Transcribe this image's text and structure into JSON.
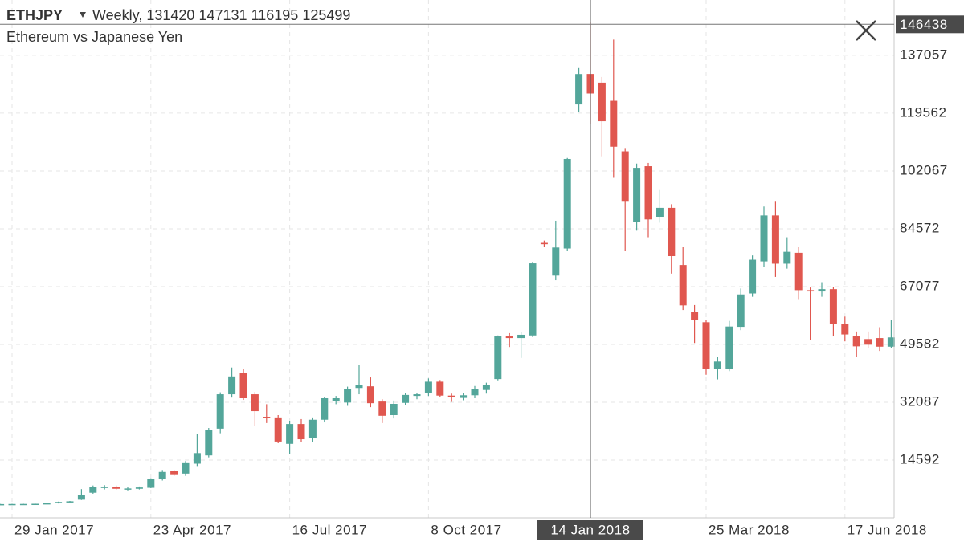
{
  "header": {
    "symbol": "ETHJPY",
    "interval": "Weekly,",
    "ohlc": [
      131420,
      147131,
      116195,
      125499
    ],
    "subtitle": "Ethereum vs Japanese Yen"
  },
  "chart_data": {
    "type": "candlestick",
    "x": [
      "2017-01-22",
      "2017-01-29",
      "2017-02-05",
      "2017-02-12",
      "2017-02-19",
      "2017-02-26",
      "2017-03-05",
      "2017-03-12",
      "2017-03-19",
      "2017-03-26",
      "2017-04-02",
      "2017-04-09",
      "2017-04-16",
      "2017-04-23",
      "2017-04-30",
      "2017-05-07",
      "2017-05-14",
      "2017-05-21",
      "2017-05-28",
      "2017-06-04",
      "2017-06-11",
      "2017-06-18",
      "2017-06-25",
      "2017-07-02",
      "2017-07-09",
      "2017-07-16",
      "2017-07-23",
      "2017-07-30",
      "2017-08-06",
      "2017-08-13",
      "2017-08-20",
      "2017-08-27",
      "2017-09-03",
      "2017-09-10",
      "2017-09-17",
      "2017-09-24",
      "2017-10-01",
      "2017-10-08",
      "2017-10-15",
      "2017-10-22",
      "2017-10-29",
      "2017-11-05",
      "2017-11-12",
      "2017-11-19",
      "2017-11-26",
      "2017-12-03",
      "2017-12-10",
      "2017-12-17",
      "2017-12-24",
      "2017-12-31",
      "2018-01-07",
      "2018-01-14",
      "2018-01-21",
      "2018-01-28",
      "2018-02-04",
      "2018-02-11",
      "2018-02-18",
      "2018-02-25",
      "2018-03-04",
      "2018-03-11",
      "2018-03-18",
      "2018-03-25",
      "2018-04-01",
      "2018-04-08",
      "2018-04-15",
      "2018-04-22",
      "2018-04-29",
      "2018-05-06",
      "2018-05-13",
      "2018-05-20",
      "2018-05-27",
      "2018-06-03",
      "2018-06-10",
      "2018-06-17",
      "2018-06-24",
      "2018-07-01",
      "2018-07-08",
      "2018-07-15"
    ],
    "open": [
      1200,
      1250,
      1280,
      1300,
      1350,
      1500,
      1900,
      2600,
      4700,
      6300,
      6500,
      5800,
      5900,
      6200,
      8800,
      11200,
      10500,
      13500,
      16000,
      24100,
      34500,
      41000,
      34500,
      27700,
      27500,
      19500,
      25500,
      21200,
      26800,
      32500,
      32000,
      36400,
      36900,
      32300,
      28200,
      31900,
      34000,
      34800,
      38300,
      34100,
      33400,
      34200,
      35800,
      39100,
      52000,
      51500,
      52300,
      80300,
      70400,
      78600,
      122200,
      131420,
      128800,
      123300,
      108000,
      86700,
      103500,
      88200,
      90900,
      73600,
      59300,
      56300,
      42200,
      42200,
      54900,
      65000,
      74700,
      88600,
      74000,
      77300,
      66000,
      65600,
      66300,
      55800,
      52000,
      51200,
      51500,
      48900
    ],
    "high": [
      1300,
      1330,
      1350,
      1400,
      1550,
      2000,
      2200,
      5800,
      6900,
      7000,
      6900,
      6400,
      6600,
      9100,
      11600,
      11600,
      14300,
      22600,
      24300,
      35100,
      42600,
      42200,
      35200,
      31500,
      28200,
      26500,
      27000,
      27500,
      33600,
      34000,
      36800,
      43400,
      39600,
      33000,
      32600,
      34800,
      35000,
      39300,
      38800,
      34700,
      35000,
      37000,
      38000,
      52300,
      53000,
      53300,
      74600,
      81000,
      87000,
      106000,
      133200,
      147131,
      130500,
      141800,
      109000,
      104300,
      104500,
      96300,
      92000,
      79000,
      61500,
      57000,
      45900,
      56700,
      66500,
      76500,
      91300,
      93000,
      82000,
      79000,
      66800,
      68400,
      67000,
      58000,
      53500,
      53500,
      54800,
      57000
    ],
    "low": [
      1150,
      1200,
      1250,
      1250,
      1300,
      1450,
      1800,
      2500,
      4400,
      5700,
      5600,
      5400,
      5700,
      6100,
      8400,
      9800,
      9800,
      12800,
      15400,
      22700,
      33500,
      32800,
      25000,
      25800,
      19700,
      16500,
      20000,
      20000,
      26000,
      31500,
      31000,
      34500,
      30600,
      25800,
      27200,
      31200,
      33000,
      34000,
      33600,
      32200,
      32700,
      33300,
      34700,
      38700,
      48800,
      45500,
      51800,
      79000,
      69000,
      77800,
      120000,
      116195,
      106500,
      100000,
      78000,
      84000,
      82000,
      86400,
      71000,
      60000,
      50000,
      40400,
      39000,
      41500,
      53900,
      64000,
      73000,
      70000,
      72500,
      63300,
      51000,
      64000,
      52000,
      50500,
      45900,
      48500,
      47600,
      48500
    ],
    "close": [
      1250,
      1280,
      1300,
      1350,
      1500,
      1900,
      2100,
      3900,
      6400,
      6500,
      5900,
      6000,
      6300,
      8900,
      11000,
      10300,
      13900,
      16700,
      23600,
      34500,
      39900,
      33300,
      29400,
      27300,
      20200,
      25500,
      20900,
      26800,
      33300,
      33300,
      36200,
      37300,
      31800,
      28000,
      31600,
      34300,
      34500,
      38300,
      34100,
      33600,
      34200,
      36000,
      37200,
      52000,
      51500,
      52500,
      74100,
      79900,
      78900,
      105700,
      131400,
      125499,
      117100,
      109400,
      93000,
      103000,
      87400,
      90900,
      76300,
      61400,
      56900,
      42200,
      44400,
      55000,
      64700,
      75200,
      88600,
      74000,
      77600,
      66000,
      65600,
      66300,
      55800,
      52600,
      49000,
      49500,
      48900,
      51700
    ],
    "up_color": "#53a69a",
    "down_color": "#e0574f",
    "ylim": [
      -2900,
      153800
    ],
    "yticks": [
      14592,
      32087,
      49582,
      67077,
      84572,
      102067,
      119562,
      137057
    ],
    "xticks": [
      {
        "value": "2017-01-29",
        "label": "29 Jan 2017"
      },
      {
        "value": "2017-04-23",
        "label": "23 Apr 2017"
      },
      {
        "value": "2017-07-16",
        "label": "16 Jul 2017"
      },
      {
        "value": "2017-10-08",
        "label": "8 Oct 2017"
      },
      {
        "value": "2018-03-25",
        "label": "25 Mar 2018"
      },
      {
        "value": "2018-06-17",
        "label": "17 Jun 2018"
      }
    ],
    "grid": true,
    "crosshair": {
      "x": "2018-01-14",
      "x_label": "14 Jan 2018",
      "y": 146438
    }
  }
}
